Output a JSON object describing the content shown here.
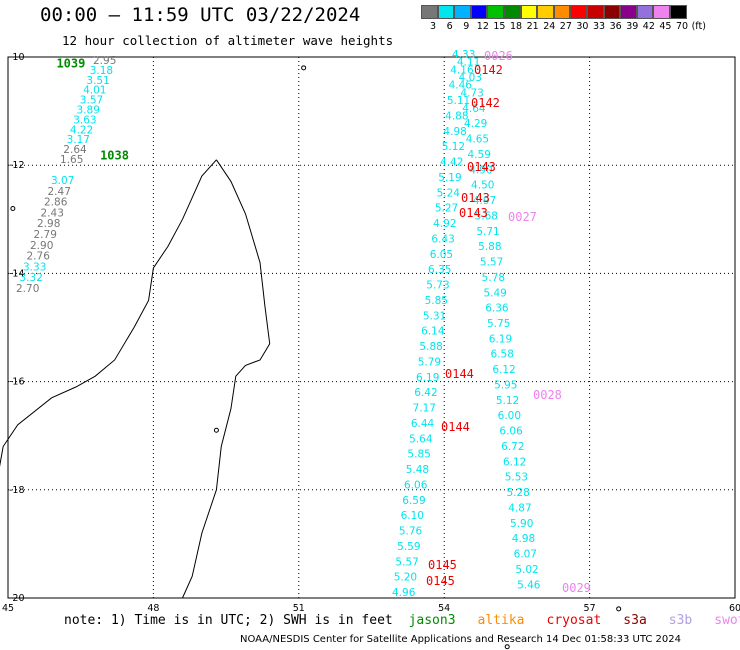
{
  "header": {
    "title": "00:00 – 11:59 UTC 03/22/2024",
    "subtitle": "12 hour collection of altimeter wave heights"
  },
  "legend": {
    "unit": "(ft)",
    "colors": [
      "#777777",
      "#00e5ee",
      "#00b2ff",
      "#0000ff",
      "#00c000",
      "#008a00",
      "#ffff00",
      "#ffcc00",
      "#ff8c00",
      "#ff0000",
      "#c80000",
      "#8b0000",
      "#8b008b",
      "#9370db",
      "#ee82ee",
      "#000000"
    ],
    "labels": [
      "3",
      "6",
      "9",
      "12",
      "15",
      "18",
      "21",
      "24",
      "27",
      "30",
      "33",
      "36",
      "39",
      "42",
      "45",
      "70"
    ]
  },
  "map": {
    "lon_range": [
      45,
      60
    ],
    "lat_range": [
      -20,
      -10
    ],
    "lon_ticks": [
      "45",
      "48",
      "51",
      "54",
      "57",
      "60"
    ],
    "lat_ticks": [
      "-10",
      "-12",
      "-14",
      "-16",
      "-18",
      "-20"
    ]
  },
  "tracks": [
    {
      "time": "1039",
      "color": "#008a00",
      "lon": 46.0,
      "lat": -10.1,
      "labels": [
        {
          "v": "2.95",
          "c": "#777777"
        },
        {
          "v": "3.18",
          "c": "#00e5ee"
        },
        {
          "v": "3.51",
          "c": "#00e5ee"
        },
        {
          "v": "4.01",
          "c": "#00e5ee"
        },
        {
          "v": "3.57",
          "c": "#00e5ee"
        },
        {
          "v": "3.89",
          "c": "#00e5ee"
        },
        {
          "v": "3.63",
          "c": "#00e5ee"
        },
        {
          "v": "4.22",
          "c": "#00e5ee"
        },
        {
          "v": "3.17",
          "c": "#00e5ee"
        },
        {
          "v": "2.64",
          "c": "#777777"
        },
        {
          "v": "1.65",
          "c": "#777777"
        }
      ]
    },
    {
      "time": "1038",
      "color": "#008a00",
      "lon": 46.9,
      "lat": -11.8,
      "labels": [
        {
          "v": "3.07",
          "c": "#00e5ee"
        },
        {
          "v": "2.47",
          "c": "#777777"
        },
        {
          "v": "2.86",
          "c": "#777777"
        },
        {
          "v": "2.43",
          "c": "#777777"
        },
        {
          "v": "2.98",
          "c": "#777777"
        },
        {
          "v": "2.79",
          "c": "#777777"
        },
        {
          "v": "2.90",
          "c": "#777777"
        },
        {
          "v": "2.76",
          "c": "#777777"
        },
        {
          "v": "3.33",
          "c": "#00e5ee"
        },
        {
          "v": "3.32",
          "c": "#00e5ee"
        },
        {
          "v": "2.70",
          "c": "#777777"
        }
      ]
    },
    {
      "time": "0142",
      "color": "#ee0000",
      "lon": 54.6,
      "lat": -10.3,
      "labels": [
        {
          "v": "4.33",
          "c": "#00e5ee"
        },
        {
          "v": "4.11",
          "c": "#00e5ee"
        },
        {
          "v": "4.16",
          "c": "#00e5ee"
        },
        {
          "v": "4.03",
          "c": "#00e5ee"
        },
        {
          "v": "4.46",
          "c": "#00e5ee"
        },
        {
          "v": "4.73",
          "c": "#00e5ee"
        },
        {
          "v": "5.11",
          "c": "#00e5ee"
        },
        {
          "v": "4.64",
          "c": "#00e5ee"
        },
        {
          "v": "4.88",
          "c": "#00e5ee"
        },
        {
          "v": "4.29",
          "c": "#00e5ee"
        },
        {
          "v": "4.98",
          "c": "#00e5ee"
        },
        {
          "v": "4.65",
          "c": "#00e5ee"
        },
        {
          "v": "5.12",
          "c": "#00e5ee"
        },
        {
          "v": "4.59",
          "c": "#00e5ee"
        },
        {
          "v": "4.42",
          "c": "#00e5ee"
        },
        {
          "v": "4.90",
          "c": "#00e5ee"
        },
        {
          "v": "5.19",
          "c": "#00e5ee"
        },
        {
          "v": "4.50",
          "c": "#00e5ee"
        },
        {
          "v": "5.24",
          "c": "#00e5ee"
        },
        {
          "v": "4.97",
          "c": "#00e5ee"
        },
        {
          "v": "5.27",
          "c": "#00e5ee"
        },
        {
          "v": "5.68",
          "c": "#00e5ee"
        },
        {
          "v": "4.92",
          "c": "#00e5ee"
        },
        {
          "v": "5.71",
          "c": "#00e5ee"
        },
        {
          "v": "6.43",
          "c": "#00e5ee"
        },
        {
          "v": "5.88",
          "c": "#00e5ee"
        },
        {
          "v": "6.05",
          "c": "#00e5ee"
        },
        {
          "v": "5.57",
          "c": "#00e5ee"
        },
        {
          "v": "6.35",
          "c": "#00e5ee"
        },
        {
          "v": "5.78",
          "c": "#00e5ee"
        },
        {
          "v": "5.73",
          "c": "#00e5ee"
        },
        {
          "v": "5.49",
          "c": "#00e5ee"
        },
        {
          "v": "5.85",
          "c": "#00e5ee"
        },
        {
          "v": "6.36",
          "c": "#00e5ee"
        },
        {
          "v": "5.31",
          "c": "#00e5ee"
        },
        {
          "v": "5.75",
          "c": "#00e5ee"
        },
        {
          "v": "6.14",
          "c": "#00e5ee"
        },
        {
          "v": "6.19",
          "c": "#00e5ee"
        },
        {
          "v": "5.88",
          "c": "#00e5ee"
        },
        {
          "v": "6.58",
          "c": "#00e5ee"
        },
        {
          "v": "5.79",
          "c": "#00e5ee"
        },
        {
          "v": "6.12",
          "c": "#00e5ee"
        },
        {
          "v": "6.19",
          "c": "#00e5ee"
        },
        {
          "v": "5.95",
          "c": "#00e5ee"
        },
        {
          "v": "6.42",
          "c": "#00e5ee"
        },
        {
          "v": "5.12",
          "c": "#00e5ee"
        },
        {
          "v": "7.17",
          "c": "#00e5ee"
        },
        {
          "v": "6.00",
          "c": "#00e5ee"
        },
        {
          "v": "6.44",
          "c": "#00e5ee"
        },
        {
          "v": "6.06",
          "c": "#00e5ee"
        },
        {
          "v": "5.64",
          "c": "#00e5ee"
        },
        {
          "v": "6.72",
          "c": "#00e5ee"
        },
        {
          "v": "5.85",
          "c": "#00e5ee"
        },
        {
          "v": "6.12",
          "c": "#00e5ee"
        },
        {
          "v": "5.48",
          "c": "#00e5ee"
        },
        {
          "v": "5.53",
          "c": "#00e5ee"
        },
        {
          "v": "6.06",
          "c": "#00e5ee"
        },
        {
          "v": "5.28",
          "c": "#00e5ee"
        },
        {
          "v": "6.59",
          "c": "#00e5ee"
        },
        {
          "v": "4.87",
          "c": "#00e5ee"
        },
        {
          "v": "6.10",
          "c": "#00e5ee"
        },
        {
          "v": "5.90",
          "c": "#00e5ee"
        },
        {
          "v": "5.76",
          "c": "#00e5ee"
        },
        {
          "v": "4.98",
          "c": "#00e5ee"
        },
        {
          "v": "5.59",
          "c": "#00e5ee"
        },
        {
          "v": "6.07",
          "c": "#00e5ee"
        },
        {
          "v": "5.57",
          "c": "#00e5ee"
        },
        {
          "v": "5.02",
          "c": "#00e5ee"
        },
        {
          "v": "5.20",
          "c": "#00e5ee"
        },
        {
          "v": "5.46",
          "c": "#00e5ee"
        },
        {
          "v": "4.96",
          "c": "#00e5ee"
        }
      ]
    }
  ],
  "time_labels": [
    {
      "t": "0026",
      "c": "#ee82ee",
      "x": 484,
      "y": 60
    },
    {
      "t": "0142",
      "c": "#ee0000",
      "x": 474,
      "y": 74
    },
    {
      "t": "0142",
      "c": "#ee0000",
      "x": 471,
      "y": 107
    },
    {
      "t": "0143",
      "c": "#ee0000",
      "x": 467,
      "y": 171
    },
    {
      "t": "0143",
      "c": "#ee0000",
      "x": 461,
      "y": 202
    },
    {
      "t": "0143",
      "c": "#ee0000",
      "x": 459,
      "y": 217
    },
    {
      "t": "0027",
      "c": "#ee82ee",
      "x": 508,
      "y": 221
    },
    {
      "t": "0144",
      "c": "#ee0000",
      "x": 445,
      "y": 378
    },
    {
      "t": "0028",
      "c": "#ee82ee",
      "x": 533,
      "y": 399
    },
    {
      "t": "0144",
      "c": "#ee0000",
      "x": 441,
      "y": 431
    },
    {
      "t": "0145",
      "c": "#ee0000",
      "x": 428,
      "y": 569
    },
    {
      "t": "0145",
      "c": "#ee0000",
      "x": 426,
      "y": 585
    },
    {
      "t": "0029",
      "c": "#ee82ee",
      "x": 562,
      "y": 592
    }
  ],
  "footer": {
    "note": "note:  1) Time is in UTC; 2) SWH is in feet",
    "satellites": [
      {
        "name": "jason3",
        "color": "#008a00"
      },
      {
        "name": "altika",
        "color": "#ff8c00"
      },
      {
        "name": "cryosat",
        "color": "#ee0000"
      },
      {
        "name": "s3a",
        "color": "#8b0000"
      },
      {
        "name": "s3b",
        "color": "#b0a0e0"
      },
      {
        "name": "swot",
        "color": "#ee82ee"
      }
    ],
    "credit": "NOAA/NESDIS Center for Satellite Applications and Research    14 Dec 01:58:33 UTC 2024"
  }
}
